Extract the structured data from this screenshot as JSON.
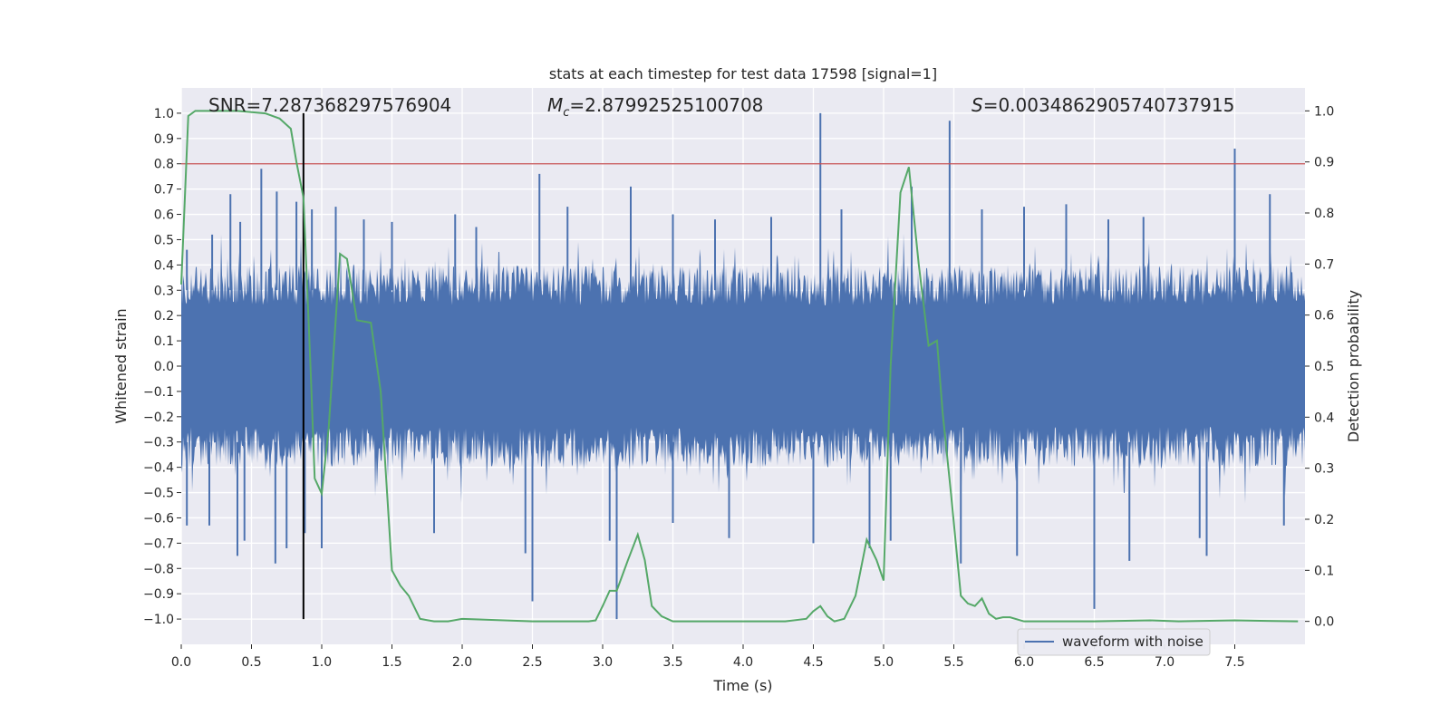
{
  "chart_data": {
    "type": "line",
    "title": "stats at each timestep for test data 17598 [signal=1]",
    "xlabel": "Time (s)",
    "ylabel": "Whitened strain",
    "y2label": "Detection probability",
    "xlim": [
      0,
      8.0
    ],
    "ylim": [
      -1.1,
      1.1
    ],
    "y2lim": [
      -0.045,
      1.045
    ],
    "xticks": [
      "0.0",
      "0.5",
      "1.0",
      "1.5",
      "2.0",
      "2.5",
      "3.0",
      "3.5",
      "4.0",
      "4.5",
      "5.0",
      "5.5",
      "6.0",
      "6.5",
      "7.0",
      "7.5"
    ],
    "yticks": [
      "1.0",
      "0.9",
      "0.8",
      "0.7",
      "0.6",
      "0.5",
      "0.4",
      "0.3",
      "0.2",
      "0.1",
      "0.0",
      "−0.1",
      "−0.2",
      "−0.3",
      "−0.4",
      "−0.5",
      "−0.6",
      "−0.7",
      "−0.8",
      "−0.9",
      "−1.0"
    ],
    "y2ticks": [
      "1.0",
      "0.9",
      "0.8",
      "0.7",
      "0.6",
      "0.5",
      "0.4",
      "0.3",
      "0.2",
      "0.1",
      "0.0"
    ],
    "annotations": {
      "snr": "SNR=7.287368297576904",
      "mc_symbol": "M",
      "mc_sub": "c",
      "mc_value": "=2.87992525100708",
      "s_symbol": "S",
      "s_value": "=0.0034862905740737915"
    },
    "threshold_line": {
      "y": 0.8,
      "color": "#c44e52"
    },
    "marker_line": {
      "x": 0.87,
      "y_from": -1.0,
      "y_to": 1.0,
      "color": "#000000"
    },
    "waveform": {
      "name": "waveform with noise",
      "color": "#4c72b0",
      "noise_level": 0.24,
      "peaks": [
        [
          0.04,
          0.46
        ],
        [
          0.22,
          0.52
        ],
        [
          0.35,
          0.68
        ],
        [
          0.42,
          0.57
        ],
        [
          0.57,
          0.78
        ],
        [
          0.68,
          0.69
        ],
        [
          0.82,
          0.65
        ],
        [
          0.93,
          0.62
        ],
        [
          1.1,
          0.63
        ],
        [
          1.3,
          0.58
        ],
        [
          1.5,
          0.57
        ],
        [
          1.95,
          0.6
        ],
        [
          2.1,
          0.55
        ],
        [
          2.55,
          0.76
        ],
        [
          2.75,
          0.63
        ],
        [
          3.2,
          0.71
        ],
        [
          3.5,
          0.6
        ],
        [
          3.8,
          0.58
        ],
        [
          4.2,
          0.59
        ],
        [
          4.55,
          1.0
        ],
        [
          4.7,
          0.62
        ],
        [
          5.2,
          0.71
        ],
        [
          5.47,
          0.97
        ],
        [
          5.7,
          0.62
        ],
        [
          6.0,
          0.63
        ],
        [
          6.3,
          0.64
        ],
        [
          6.6,
          0.58
        ],
        [
          6.85,
          0.59
        ],
        [
          7.5,
          0.86
        ],
        [
          7.75,
          0.68
        ]
      ],
      "troughs": [
        [
          0.04,
          -0.63
        ],
        [
          0.2,
          -0.63
        ],
        [
          0.4,
          -0.75
        ],
        [
          0.45,
          -0.69
        ],
        [
          0.67,
          -0.78
        ],
        [
          0.75,
          -0.72
        ],
        [
          0.88,
          -0.66
        ],
        [
          1.0,
          -0.72
        ],
        [
          1.8,
          -0.66
        ],
        [
          2.45,
          -0.74
        ],
        [
          2.5,
          -0.93
        ],
        [
          3.05,
          -0.69
        ],
        [
          3.1,
          -1.0
        ],
        [
          3.5,
          -0.62
        ],
        [
          3.9,
          -0.68
        ],
        [
          4.5,
          -0.7
        ],
        [
          4.9,
          -0.72
        ],
        [
          5.05,
          -0.69
        ],
        [
          5.55,
          -0.78
        ],
        [
          5.95,
          -0.75
        ],
        [
          6.5,
          -0.96
        ],
        [
          6.75,
          -0.77
        ],
        [
          7.25,
          -0.68
        ],
        [
          7.3,
          -0.75
        ],
        [
          7.85,
          -0.63
        ]
      ]
    },
    "probability": {
      "color": "#55a868",
      "x": [
        0.0,
        0.05,
        0.1,
        0.2,
        0.4,
        0.6,
        0.7,
        0.78,
        0.82,
        0.87,
        0.92,
        0.95,
        1.0,
        1.05,
        1.13,
        1.18,
        1.25,
        1.35,
        1.42,
        1.5,
        1.56,
        1.62,
        1.7,
        1.8,
        1.9,
        2.0,
        2.3,
        2.5,
        2.9,
        2.95,
        3.0,
        3.05,
        3.1,
        3.18,
        3.25,
        3.3,
        3.35,
        3.42,
        3.5,
        3.6,
        4.3,
        4.45,
        4.5,
        4.55,
        4.6,
        4.65,
        4.72,
        4.8,
        4.88,
        4.95,
        5.0,
        5.05,
        5.12,
        5.18,
        5.25,
        5.32,
        5.38,
        5.42,
        5.48,
        5.55,
        5.6,
        5.65,
        5.7,
        5.75,
        5.8,
        5.85,
        5.9,
        6.0,
        6.5,
        6.9,
        7.1,
        7.5,
        7.95
      ],
      "y": [
        0.66,
        0.99,
        1.0,
        1.0,
        1.0,
        0.995,
        0.985,
        0.965,
        0.9,
        0.83,
        0.5,
        0.28,
        0.25,
        0.38,
        0.72,
        0.71,
        0.59,
        0.585,
        0.45,
        0.1,
        0.07,
        0.05,
        0.005,
        0.0,
        0.0,
        0.005,
        0.002,
        0.0,
        0.0,
        0.002,
        0.03,
        0.06,
        0.06,
        0.12,
        0.17,
        0.12,
        0.03,
        0.01,
        0.0,
        0.0,
        0.0,
        0.005,
        0.02,
        0.03,
        0.01,
        0.0,
        0.005,
        0.05,
        0.16,
        0.12,
        0.08,
        0.5,
        0.84,
        0.89,
        0.7,
        0.54,
        0.55,
        0.41,
        0.25,
        0.05,
        0.035,
        0.03,
        0.045,
        0.015,
        0.005,
        0.008,
        0.008,
        0.0,
        0.0,
        0.002,
        0.0,
        0.002,
        0.0
      ]
    },
    "legend": {
      "label": "waveform with noise",
      "position": "lower-right"
    }
  }
}
